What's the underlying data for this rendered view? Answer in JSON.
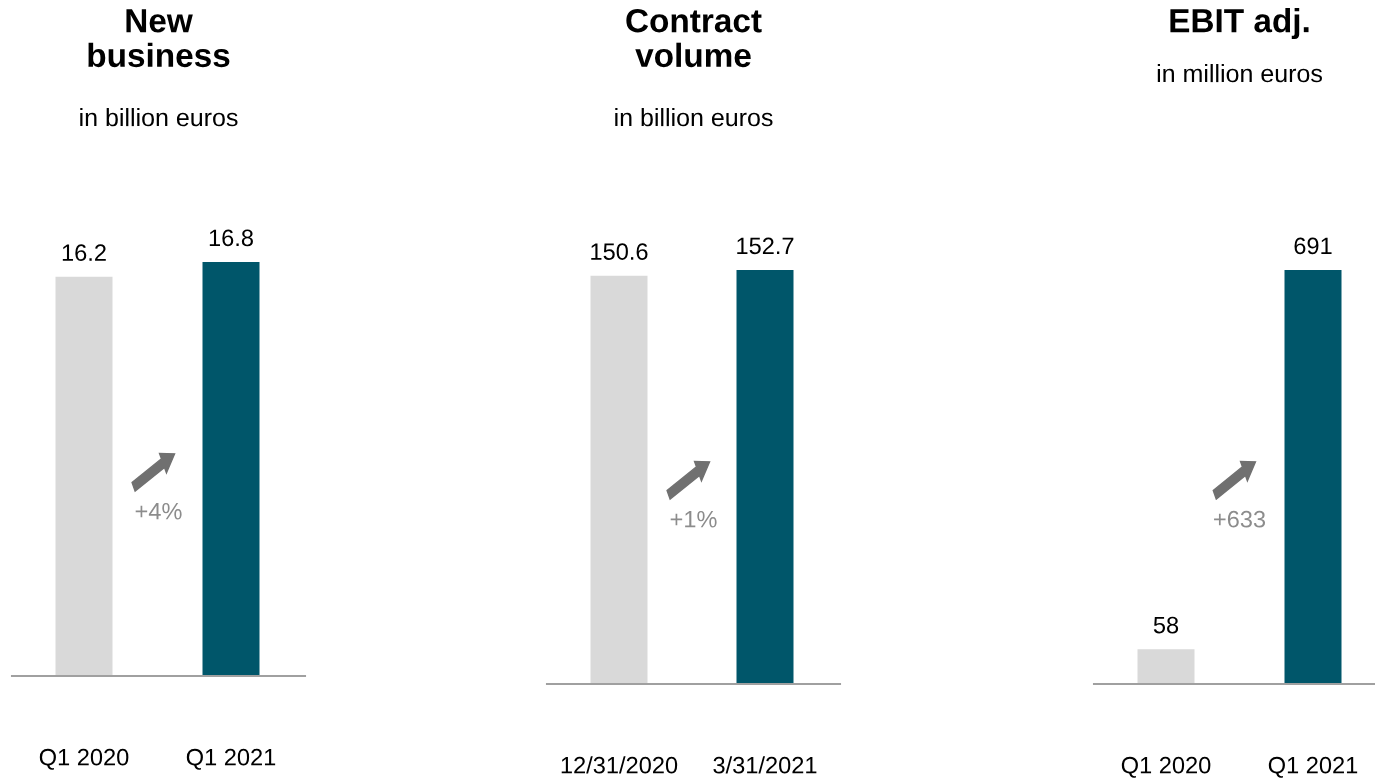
{
  "chart_data": [
    {
      "type": "bar",
      "title": "New\nbusiness",
      "subtitle": "in billion euros",
      "categories": [
        "Q1 2020",
        "Q1 2021"
      ],
      "values": [
        16.2,
        16.8
      ],
      "colors": [
        "#d9d9d9",
        "#00566a"
      ],
      "data_labels": true,
      "tick_labels": "x",
      "annotations": [
        "+4%"
      ]
    },
    {
      "type": "bar",
      "title": "Contract\nvolume",
      "subtitle": "in billion euros",
      "categories": [
        "12/31/2020",
        "3/31/2021"
      ],
      "values": [
        150.6,
        152.7
      ],
      "colors": [
        "#d9d9d9",
        "#00566a"
      ],
      "data_labels": true,
      "tick_labels": "x",
      "annotations": [
        "+1%"
      ]
    },
    {
      "type": "bar",
      "title": "EBIT adj.",
      "subtitle": "in million euros",
      "categories": [
        "Q1 2020",
        "Q1 2021"
      ],
      "values": [
        58,
        691
      ],
      "colors": [
        "#d9d9d9",
        "#00566a"
      ],
      "data_labels": true,
      "tick_labels": "x",
      "annotations": [
        "+633"
      ]
    }
  ]
}
